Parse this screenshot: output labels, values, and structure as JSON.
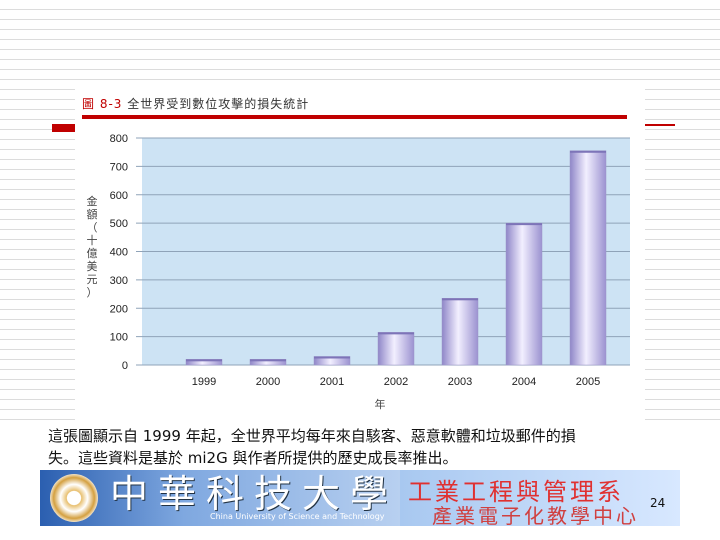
{
  "figure": {
    "caption_label": "圖 8-3",
    "caption_text": "全世界受到數位攻擊的損失統計"
  },
  "description": {
    "line1": "這張圖顯示自 1999 年起，全世界平均每年來自駭客、惡意軟體和垃圾郵件的損",
    "line2": "失。這些資料是基於 mi2G 與作者所提供的歷史成長率推出。"
  },
  "banner": {
    "school_cn": "中華科技大學",
    "school_en": "China University of Science and Technology",
    "dept_cn": "工業工程與管理系",
    "center_cn": "產業電子化教學中心"
  },
  "page_number": "24",
  "colors": {
    "accent_red": "#c00000",
    "plot_bg": "#cde3f4",
    "bar": "#b7aee0"
  },
  "chart_data": {
    "type": "bar",
    "categories": [
      "1999",
      "2000",
      "2001",
      "2002",
      "2003",
      "2004",
      "2005"
    ],
    "values": [
      20,
      20,
      30,
      115,
      235,
      500,
      755
    ],
    "ylabel": "金額（十億美元）",
    "xlabel": "年",
    "ylim": [
      0,
      800
    ],
    "yticks": [
      0,
      100,
      200,
      300,
      400,
      500,
      600,
      700,
      800
    ],
    "grid": true
  }
}
